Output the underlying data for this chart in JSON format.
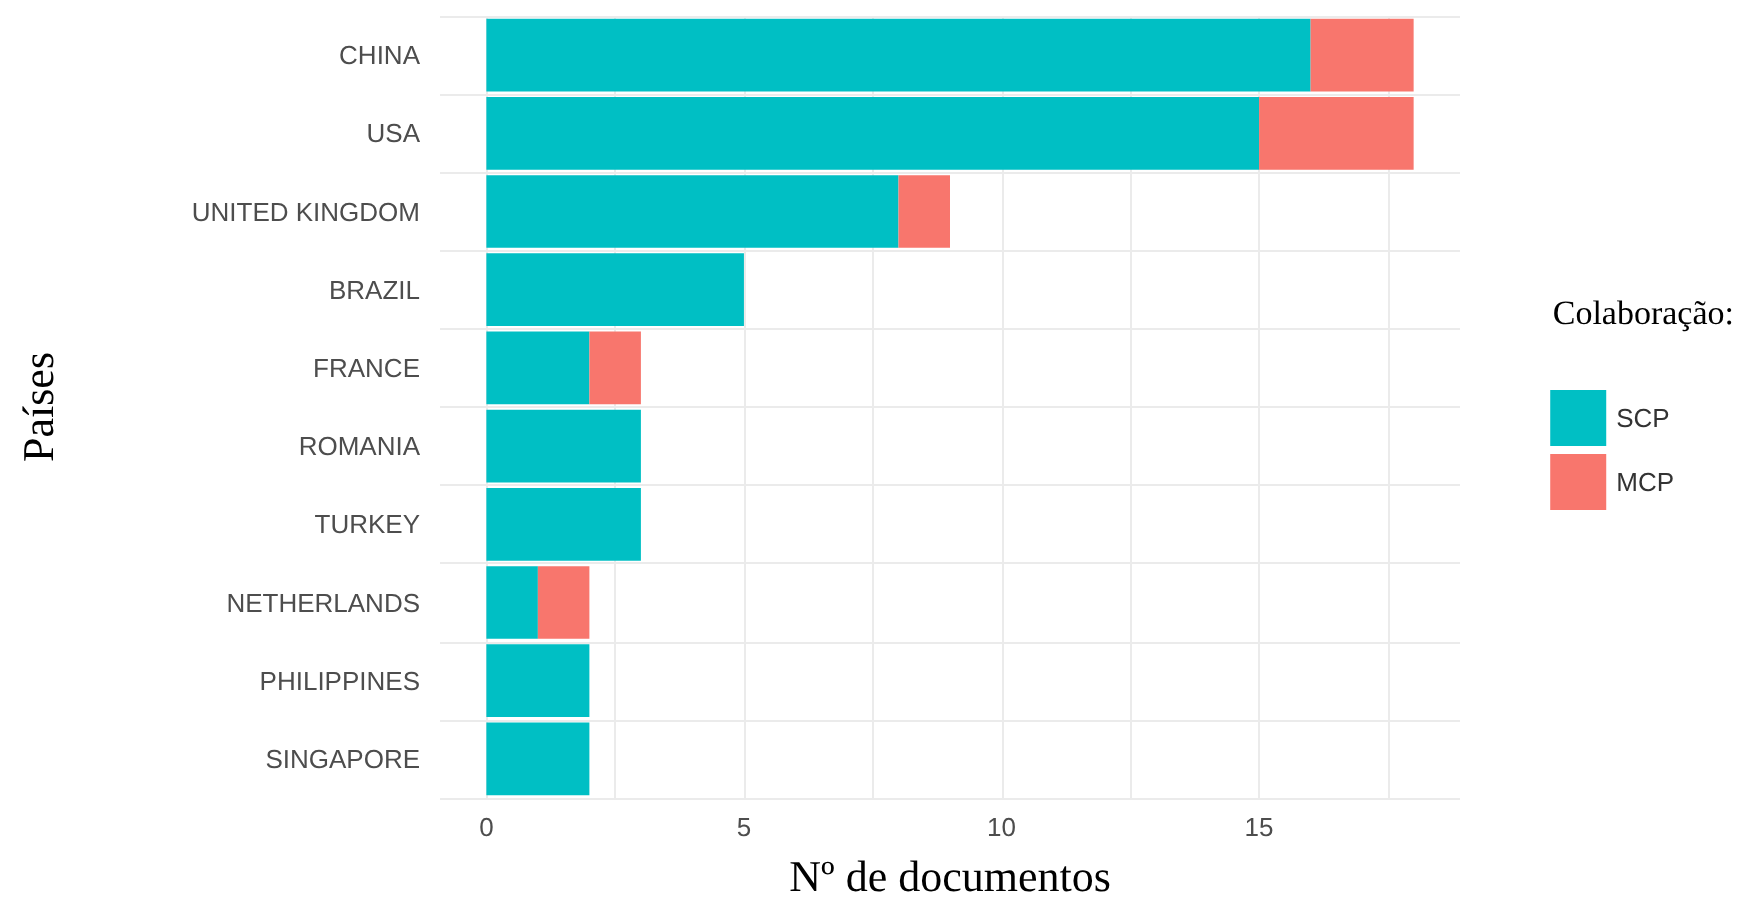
{
  "chart_data": {
    "type": "bar",
    "orientation": "horizontal",
    "stacked": true,
    "xlabel": "Nº de documentos",
    "ylabel": "Países",
    "legend_title": "Colaboração:",
    "categories": [
      "CHINA",
      "USA",
      "UNITED KINGDOM",
      "BRAZIL",
      "FRANCE",
      "ROMANIA",
      "TURKEY",
      "NETHERLANDS",
      "PHILIPPINES",
      "SINGAPORE"
    ],
    "series": [
      {
        "name": "SCP",
        "color": "#00bfc4",
        "values": [
          16,
          15,
          8,
          5,
          2,
          3,
          3,
          1,
          2,
          2
        ]
      },
      {
        "name": "MCP",
        "color": "#f8766d",
        "values": [
          2,
          3,
          1,
          0,
          1,
          0,
          0,
          1,
          0,
          0
        ]
      }
    ],
    "xlim": [
      -0.9,
      18.9
    ],
    "xticks": [
      0,
      {
        "value": 2.5,
        "label": null
      },
      5,
      {
        "value": 7.5,
        "label": null
      },
      10,
      {
        "value": 12.5,
        "label": null
      },
      15,
      {
        "value": 17.5,
        "label": null
      }
    ],
    "grid": true,
    "legend": "right"
  }
}
